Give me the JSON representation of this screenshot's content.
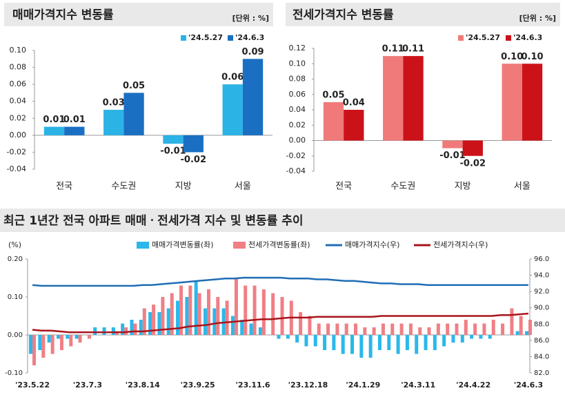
{
  "chart_data": [
    {
      "type": "bar",
      "title": "매매가격지수 변동률",
      "unit": "[단위 : %]",
      "categories": [
        "전국",
        "수도권",
        "지방",
        "서울"
      ],
      "series": [
        {
          "name": "'24.5.27",
          "color": "#2bb3e6",
          "values": [
            0.01,
            0.03,
            -0.01,
            0.06
          ]
        },
        {
          "name": "'24.6.3",
          "color": "#1b6fc2",
          "values": [
            0.01,
            0.05,
            -0.02,
            0.09
          ]
        }
      ],
      "ylim": [
        -0.04,
        0.1
      ],
      "yticks": [
        {
          "value": -0.04,
          "label": "-0.04"
        },
        {
          "value": -0.02,
          "label": "-0.02"
        },
        {
          "value": 0,
          "label": "0.00"
        },
        0.02,
        0.04,
        0.06,
        0.08,
        {
          "value": 0.1,
          "label": "0.10"
        }
      ]
    },
    {
      "type": "bar",
      "title": "전세가격지수 변동률",
      "unit": "[단위 : %]",
      "categories": [
        "전국",
        "수도권",
        "지방",
        "서울"
      ],
      "series": [
        {
          "name": "'24.5.27",
          "color": "#f07a7a",
          "values": [
            0.05,
            0.11,
            -0.01,
            0.1
          ],
          "value_labels": [
            "0.05",
            "0.11",
            "-0.01",
            "0.10"
          ]
        },
        {
          "name": "'24.6.3",
          "color": "#cc1219",
          "values": [
            0.04,
            0.11,
            -0.02,
            0.1
          ],
          "value_labels": [
            "0.04",
            "0.11",
            "-0.02",
            "0.10"
          ]
        }
      ],
      "ylim": [
        -0.04,
        0.12
      ],
      "yticks": [
        {
          "value": -0.04,
          "label": "-0.04"
        },
        {
          "value": -0.02,
          "label": "-0.02"
        },
        {
          "value": 0,
          "label": "0.00"
        },
        0.02,
        0.04,
        0.06,
        0.08,
        {
          "value": 0.1,
          "label": "0.10"
        },
        0.12
      ]
    },
    {
      "type": "combo",
      "title": "최근 1년간 전국 아파트 매매ㆍ전세가격 지수 및 변동률 추이",
      "ylabel": "(%)",
      "categories": [
        "'23.5.22",
        null,
        null,
        null,
        null,
        null,
        "'23.7.3",
        null,
        null,
        null,
        null,
        null,
        "'23.8.14",
        null,
        null,
        null,
        null,
        null,
        "'23.9.25",
        null,
        null,
        null,
        null,
        null,
        "'23.11.6",
        null,
        null,
        null,
        null,
        null,
        "'23.12.18",
        null,
        null,
        null,
        null,
        null,
        "'24.1.29",
        null,
        null,
        null,
        null,
        null,
        "'24.3.11",
        null,
        null,
        null,
        null,
        null,
        "'24.4.22",
        null,
        null,
        null,
        null,
        null,
        "'24.6.3"
      ],
      "series": [
        {
          "name": "매매가격변동률(좌)",
          "type": "bar",
          "color": "#2bb8ea",
          "values": [
            -0.05,
            -0.04,
            -0.02,
            -0.01,
            -0.01,
            -0.01,
            0,
            0.02,
            0.02,
            0.02,
            0.03,
            0.04,
            0.04,
            0.06,
            0.06,
            0.07,
            0.09,
            0.1,
            0.14,
            0.07,
            0.07,
            0.07,
            0.05,
            0.04,
            0.03,
            0.02,
            0,
            -0.01,
            -0.01,
            -0.02,
            -0.03,
            -0.03,
            -0.04,
            -0.04,
            -0.05,
            -0.05,
            -0.06,
            -0.06,
            -0.04,
            -0.04,
            -0.05,
            -0.04,
            -0.05,
            -0.04,
            -0.04,
            -0.03,
            -0.02,
            -0.02,
            -0.01,
            -0.01,
            -0.01,
            0,
            0,
            0.01,
            0.01
          ]
        },
        {
          "name": "전세가격변동률(좌)",
          "type": "bar",
          "color": "#f07f85",
          "values": [
            -0.08,
            -0.06,
            -0.05,
            -0.04,
            -0.03,
            -0.02,
            -0.01,
            0,
            0,
            0.01,
            0.02,
            0.03,
            0.07,
            0.08,
            0.1,
            0.11,
            0.13,
            0.13,
            0.11,
            0.12,
            0.1,
            0.09,
            0.15,
            0.13,
            0.13,
            0.12,
            0.11,
            0.1,
            0.09,
            0.06,
            0.05,
            0.03,
            0.03,
            0.03,
            0.03,
            0.03,
            0.02,
            0.02,
            0.03,
            0.03,
            0.03,
            0.03,
            0.02,
            0.02,
            0.03,
            0.03,
            0.03,
            0.04,
            0.03,
            0.03,
            0.04,
            0.03,
            0.07,
            0.05,
            0.04
          ]
        },
        {
          "name": "매매가격지수(우)",
          "type": "line",
          "axis": "y2",
          "color": "#1f6db5",
          "values": [
            92.8,
            92.7,
            92.7,
            92.7,
            92.7,
            92.7,
            92.7,
            92.7,
            92.7,
            92.7,
            92.7,
            92.7,
            92.8,
            92.8,
            92.9,
            93.0,
            93.1,
            93.2,
            93.3,
            93.4,
            93.5,
            93.6,
            93.6,
            93.7,
            93.7,
            93.7,
            93.7,
            93.7,
            93.6,
            93.6,
            93.6,
            93.5,
            93.5,
            93.4,
            93.3,
            93.3,
            93.2,
            93.1,
            93.0,
            93.0,
            92.9,
            92.9,
            92.9,
            92.8,
            92.8,
            92.8,
            92.8,
            92.8,
            92.8,
            92.8,
            92.8,
            92.8,
            92.8,
            92.8,
            92.8
          ]
        },
        {
          "name": "전세가격지수(우)",
          "type": "line",
          "axis": "y2",
          "color": "#a8141c",
          "values": [
            87.3,
            87.2,
            87.2,
            87.1,
            87.0,
            87.0,
            87.0,
            87.0,
            87.0,
            87.0,
            87.0,
            87.1,
            87.1,
            87.2,
            87.3,
            87.4,
            87.5,
            87.7,
            87.8,
            87.9,
            88.1,
            88.2,
            88.3,
            88.4,
            88.5,
            88.6,
            88.6,
            88.7,
            88.8,
            88.8,
            88.8,
            88.9,
            88.9,
            88.9,
            88.9,
            88.9,
            88.9,
            88.9,
            89.0,
            89.0,
            89.0,
            89.0,
            89.0,
            89.0,
            89.0,
            89.0,
            89.0,
            89.0,
            89.0,
            89.0,
            89.0,
            89.1,
            89.1,
            89.2,
            89.3
          ]
        }
      ],
      "ylim": [
        -0.1,
        0.2
      ],
      "yticks": [
        {
          "value": -0.1,
          "label": "-0.10"
        },
        {
          "value": 0,
          "label": "0.00"
        },
        {
          "value": 0.1,
          "label": "0.10"
        },
        {
          "value": 0.2,
          "label": "0.20"
        }
      ],
      "y2lim": [
        82,
        96
      ],
      "y2ticks": [
        {
          "value": 82,
          "label": "82.0"
        },
        {
          "value": 84,
          "label": "84.0"
        },
        {
          "value": 86,
          "label": "86.0"
        },
        {
          "value": 88,
          "label": "88.0"
        },
        {
          "value": 90,
          "label": "90.0"
        },
        {
          "value": 92,
          "label": "92.0"
        },
        {
          "value": 94,
          "label": "94.0"
        },
        {
          "value": 96,
          "label": "96.0"
        }
      ]
    }
  ]
}
